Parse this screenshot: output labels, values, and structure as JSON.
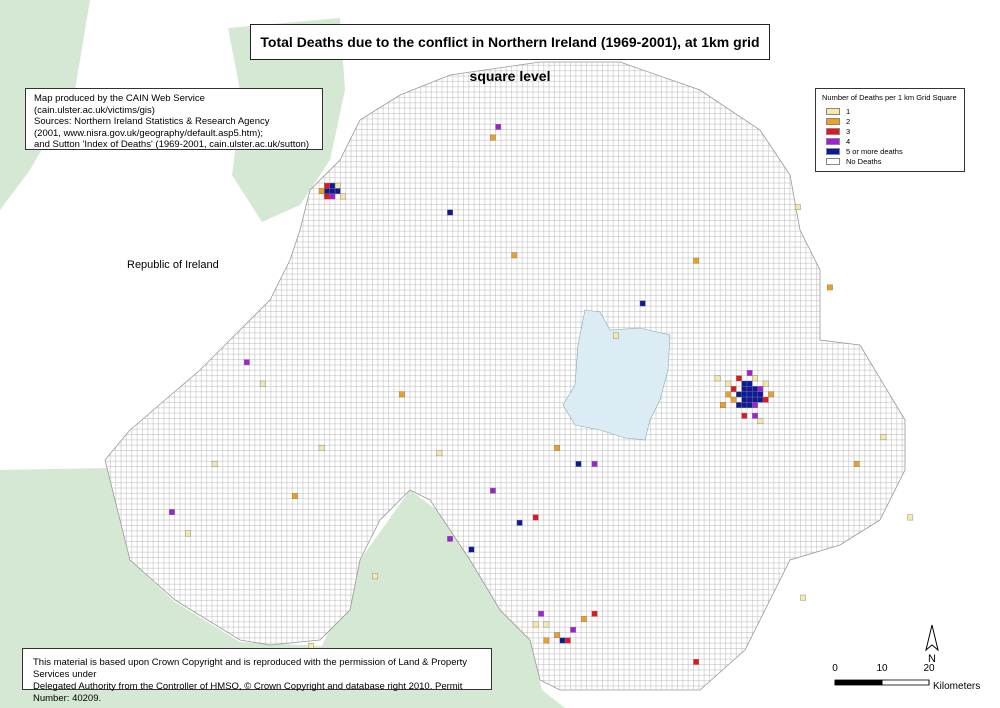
{
  "title": "Total Deaths due to the conflict in Northern Ireland (1969-2001), at 1km grid square level",
  "info": [
    "Map produced by the CAIN Web Service (cain.ulster.ac.uk/victims/gis)",
    "Sources: Northern Ireland Statistics & Research Agency",
    "(2001, www.nisra.gov.uk/geography/default.asp5.htm);",
    "and Sutton 'Index of Deaths' (1969-2001, cain.ulster.ac.uk/sutton)"
  ],
  "legend": {
    "title": "Number of Deaths per 1 km Grid Square",
    "items": [
      {
        "label": "1",
        "color": "#f7eaa6"
      },
      {
        "label": "2",
        "color": "#f0a020"
      },
      {
        "label": "3",
        "color": "#e8141c"
      },
      {
        "label": "4",
        "color": "#a020d8"
      },
      {
        "label": "5 or more deaths",
        "color": "#0a1a9a"
      },
      {
        "label": "No Deaths",
        "color": "#ffffff"
      }
    ]
  },
  "region_label": "Republic of Ireland",
  "copyright": [
    "This material is based upon Crown Copyright and is reproduced with the permission of Land & Property Services under",
    "Delegated Authority from the Controller of HMSO, © Crown Copyright and database right 2010. Permit Number: 40209."
  ],
  "north_label": "N",
  "scale_bar": {
    "ticks": [
      0,
      10,
      20
    ],
    "unit": "Kilometers"
  },
  "squares": [
    [
      231,
      436,
      4
    ],
    [
      232,
      436,
      4
    ],
    [
      233,
      436,
      4
    ],
    [
      232,
      437,
      4
    ],
    [
      231,
      437,
      2
    ],
    [
      233,
      437,
      0
    ],
    [
      232,
      435,
      3
    ],
    [
      230,
      436,
      1
    ],
    [
      234,
      435,
      0
    ],
    [
      231,
      435,
      2
    ],
    [
      308,
      398,
      4
    ],
    [
      309,
      398,
      4
    ],
    [
      310,
      398,
      4
    ],
    [
      311,
      398,
      4
    ],
    [
      309,
      397,
      4
    ],
    [
      310,
      397,
      4
    ],
    [
      311,
      397,
      4
    ],
    [
      312,
      397,
      4
    ],
    [
      309,
      399,
      4
    ],
    [
      310,
      399,
      4
    ],
    [
      311,
      399,
      4
    ],
    [
      308,
      396,
      4
    ],
    [
      309,
      396,
      4
    ],
    [
      310,
      396,
      4
    ],
    [
      311,
      396,
      3
    ],
    [
      312,
      398,
      4
    ],
    [
      309,
      400,
      4
    ],
    [
      310,
      400,
      4
    ],
    [
      307,
      397,
      1
    ],
    [
      307,
      399,
      2
    ],
    [
      306,
      398,
      1
    ],
    [
      313,
      397,
      2
    ],
    [
      312,
      399,
      3
    ],
    [
      308,
      401,
      2
    ],
    [
      311,
      401,
      0
    ],
    [
      310,
      402,
      3
    ],
    [
      306,
      400,
      0
    ],
    [
      305,
      396,
      1
    ],
    [
      311,
      394,
      3
    ],
    [
      312,
      393,
      0
    ],
    [
      309,
      394,
      2
    ],
    [
      313,
      400,
      0
    ],
    [
      314,
      398,
      1
    ],
    [
      304,
      401,
      0
    ],
    [
      275,
      352,
      4
    ],
    [
      276,
      352,
      2
    ],
    [
      274,
      353,
      1
    ],
    [
      277,
      354,
      3
    ],
    [
      272,
      355,
      0
    ],
    [
      271,
      357,
      3
    ],
    [
      279,
      356,
      1
    ],
    [
      281,
      357,
      2
    ],
    [
      272,
      352,
      1
    ],
    [
      270,
      355,
      0
    ],
    [
      254,
      432,
      4
    ],
    [
      263,
      448,
      3
    ],
    [
      262,
      446,
      1
    ],
    [
      290,
      415,
      4
    ],
    [
      267,
      374,
      4
    ],
    [
      270,
      375,
      2
    ],
    [
      278,
      385,
      4
    ],
    [
      281,
      385,
      3
    ],
    [
      274,
      388,
      1
    ],
    [
      252,
      387,
      0
    ],
    [
      219,
      400,
      0
    ],
    [
      216,
      404,
      3
    ],
    [
      210,
      385,
      0
    ],
    [
      202,
      376,
      3
    ],
    [
      225,
      379,
      1
    ],
    [
      240,
      364,
      0
    ],
    [
      205,
      372,
      0
    ],
    [
      245,
      398,
      1
    ],
    [
      300,
      423,
      1
    ],
    [
      319,
      433,
      0
    ],
    [
      325,
      418,
      1
    ],
    [
      335,
      390,
      0
    ],
    [
      340,
      375,
      0
    ],
    [
      330,
      385,
      1
    ],
    [
      300,
      348,
      2
    ],
    [
      320,
      360,
      0
    ],
    [
      228,
      351,
      0
    ],
    [
      237,
      346,
      4
    ],
    [
      258,
      369,
      4
    ],
    [
      254,
      371,
      3
    ],
    [
      262,
      380,
      3
    ],
    [
      230,
      388,
      0
    ],
    [
      266,
      424,
      1
    ],
    [
      285,
      409,
      0
    ]
  ]
}
